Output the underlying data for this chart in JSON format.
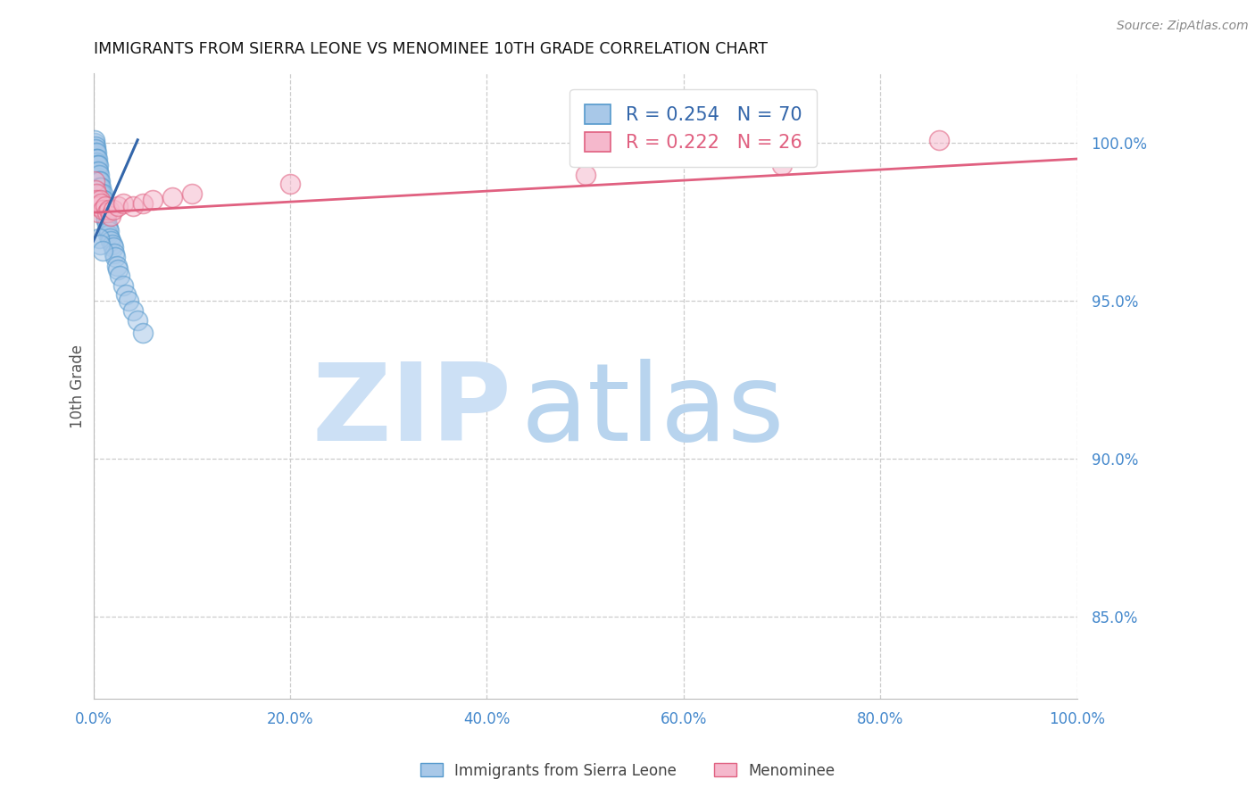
{
  "title": "IMMIGRANTS FROM SIERRA LEONE VS MENOMINEE 10TH GRADE CORRELATION CHART",
  "source": "Source: ZipAtlas.com",
  "ylabel": "10th Grade",
  "legend_label1": "Immigrants from Sierra Leone",
  "legend_label2": "Menominee",
  "R1": 0.254,
  "N1": 70,
  "R2": 0.222,
  "N2": 26,
  "color1": "#a8c8e8",
  "color2": "#f5b8cc",
  "edge1": "#5599cc",
  "edge2": "#e06080",
  "trendline1_color": "#3366aa",
  "trendline2_color": "#e06080",
  "tick_color": "#4488cc",
  "background": "#ffffff",
  "watermark_zip_color": "#cce0f5",
  "watermark_atlas_color": "#b8d4ee",
  "grid_color": "#cccccc",
  "xmin": 0.0,
  "xmax": 1.0,
  "ymin": 0.824,
  "ymax": 1.022,
  "yticks": [
    0.85,
    0.9,
    0.95,
    1.0
  ],
  "ytick_labels": [
    "85.0%",
    "90.0%",
    "95.0%",
    "100.0%"
  ],
  "xticks": [
    0.0,
    0.2,
    0.4,
    0.6,
    0.8,
    1.0
  ],
  "xtick_labels": [
    "0.0%",
    "20.0%",
    "40.0%",
    "60.0%",
    "80.0%",
    "100.0%"
  ],
  "blue_x": [
    0.0005,
    0.0008,
    0.001,
    0.001,
    0.0012,
    0.0013,
    0.0015,
    0.0015,
    0.002,
    0.002,
    0.002,
    0.002,
    0.002,
    0.0025,
    0.003,
    0.003,
    0.003,
    0.003,
    0.003,
    0.003,
    0.0035,
    0.004,
    0.004,
    0.004,
    0.004,
    0.004,
    0.005,
    0.005,
    0.005,
    0.005,
    0.006,
    0.006,
    0.006,
    0.006,
    0.007,
    0.007,
    0.007,
    0.008,
    0.008,
    0.008,
    0.009,
    0.009,
    0.01,
    0.01,
    0.011,
    0.012,
    0.012,
    0.013,
    0.014,
    0.015,
    0.015,
    0.016,
    0.017,
    0.018,
    0.019,
    0.02,
    0.021,
    0.022,
    0.024,
    0.025,
    0.027,
    0.03,
    0.033,
    0.036,
    0.04,
    0.045,
    0.05,
    0.006,
    0.007,
    0.009
  ],
  "blue_y": [
    0.99,
    0.997,
    1.0,
    0.998,
    0.996,
    0.994,
    0.993,
    1.001,
    0.999,
    0.997,
    0.995,
    0.992,
    0.989,
    0.998,
    0.997,
    0.995,
    0.993,
    0.991,
    0.988,
    0.985,
    0.994,
    0.995,
    0.993,
    0.991,
    0.989,
    0.987,
    0.993,
    0.991,
    0.988,
    0.986,
    0.99,
    0.988,
    0.986,
    0.984,
    0.988,
    0.986,
    0.984,
    0.986,
    0.984,
    0.982,
    0.984,
    0.982,
    0.982,
    0.98,
    0.98,
    0.978,
    0.976,
    0.976,
    0.974,
    0.973,
    0.971,
    0.972,
    0.97,
    0.969,
    0.968,
    0.967,
    0.965,
    0.964,
    0.961,
    0.96,
    0.958,
    0.955,
    0.952,
    0.95,
    0.947,
    0.944,
    0.94,
    0.97,
    0.968,
    0.966
  ],
  "pink_x": [
    0.001,
    0.002,
    0.003,
    0.003,
    0.004,
    0.005,
    0.006,
    0.007,
    0.008,
    0.009,
    0.012,
    0.014,
    0.016,
    0.018,
    0.02,
    0.025,
    0.03,
    0.04,
    0.05,
    0.06,
    0.08,
    0.1,
    0.2,
    0.5,
    0.7,
    0.86
  ],
  "pink_y": [
    0.988,
    0.985,
    0.984,
    0.982,
    0.98,
    0.978,
    0.98,
    0.982,
    0.981,
    0.979,
    0.98,
    0.978,
    0.979,
    0.977,
    0.979,
    0.98,
    0.981,
    0.98,
    0.981,
    0.982,
    0.983,
    0.984,
    0.987,
    0.99,
    0.993,
    1.001
  ],
  "blue_trendline_x": [
    0.0,
    0.045
  ],
  "blue_trendline_y": [
    0.969,
    1.001
  ],
  "pink_trendline_x": [
    0.0,
    1.0
  ],
  "pink_trendline_y": [
    0.978,
    0.995
  ]
}
